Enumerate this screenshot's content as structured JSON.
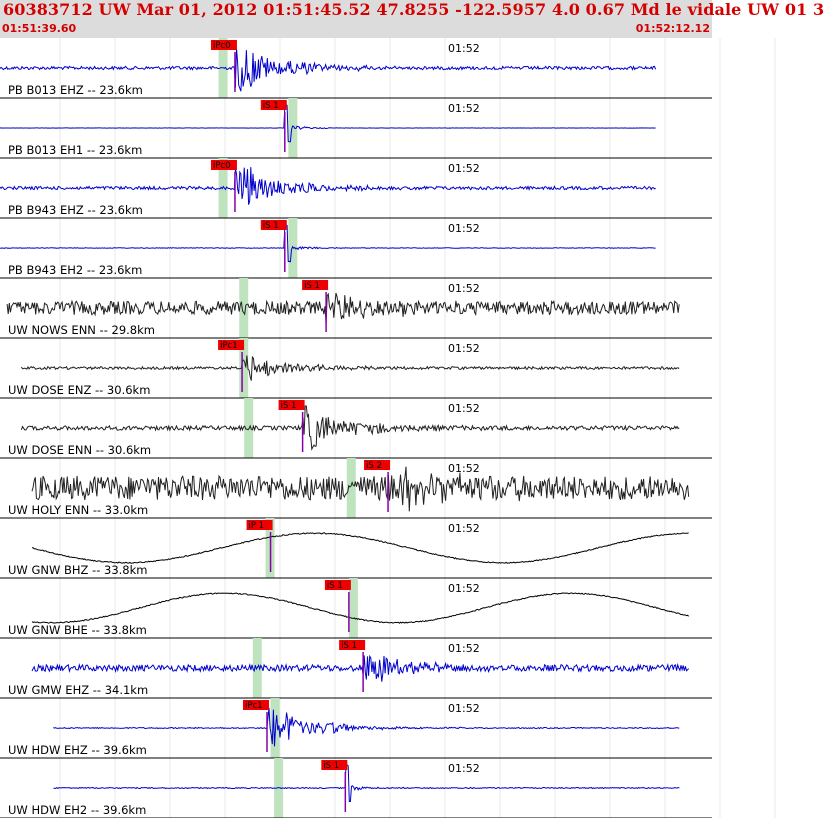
{
  "header": {
    "title": "60383712 UW Mar 01, 2012 01:51:45.52   47.8255 -122.5957  4.0 0.67 Md le vidale UW 01   3",
    "time_start": "01:51:39.60",
    "time_end": "01:52:12.12"
  },
  "colors": {
    "header_bg": "#dcdcdc",
    "header_text": "#d40000",
    "blue_trace": "#0000cc",
    "dark_trace": "#202020",
    "black_trace": "#000000",
    "pick_bg": "#ee0000",
    "green_band": "#bfe3bf"
  },
  "channels": [
    {
      "label": "PB B013 EHZ -- 23.6km",
      "time_label": "01:52",
      "pick": "iPc0",
      "color": "blue",
      "trace_start": 0.0,
      "trace_end": 0.922,
      "pick_x": 0.33,
      "amp": 0.9,
      "noise": 0.06,
      "style": "quake",
      "band": 0.307
    },
    {
      "label": "PB B013 EH1 -- 23.6km",
      "time_label": "01:52",
      "pick": "iS 1",
      "color": "blue",
      "trace_start": 0.0,
      "trace_end": 0.922,
      "pick_x": 0.4,
      "amp": 0.9,
      "noise": 0.005,
      "style": "spike",
      "band": 0.405
    },
    {
      "label": "PB B943 EHZ -- 23.6km",
      "time_label": "01:52",
      "pick": "iPc0",
      "color": "blue",
      "trace_start": 0.0,
      "trace_end": 0.922,
      "pick_x": 0.33,
      "amp": 0.9,
      "noise": 0.06,
      "style": "quake",
      "band": 0.307
    },
    {
      "label": "PB B943 EH2 -- 23.6km",
      "time_label": "01:52",
      "pick": "iS 1",
      "color": "blue",
      "trace_start": 0.0,
      "trace_end": 0.922,
      "pick_x": 0.4,
      "amp": 0.9,
      "noise": 0.01,
      "style": "spike",
      "band": 0.405
    },
    {
      "label": "UW NOWS ENN -- 29.8km",
      "time_label": "01:52",
      "pick": "iS 1",
      "color": "dark",
      "trace_start": 0.01,
      "trace_end": 0.955,
      "pick_x": 0.458,
      "amp": 0.5,
      "noise": 0.25,
      "style": "noisy",
      "band": 0.336
    },
    {
      "label": "UW DOSE ENZ -- 30.6km",
      "time_label": "01:52",
      "pick": "iPc1",
      "color": "dark",
      "trace_start": 0.03,
      "trace_end": 0.955,
      "pick_x": 0.34,
      "amp": 0.55,
      "noise": 0.05,
      "style": "quake",
      "band": 0.336
    },
    {
      "label": "UW DOSE ENN -- 30.6km",
      "time_label": "01:52",
      "pick": "iS 1",
      "color": "dark",
      "trace_start": 0.03,
      "trace_end": 0.955,
      "pick_x": 0.425,
      "amp": 0.85,
      "noise": 0.08,
      "style": "quake",
      "band": 0.343
    },
    {
      "label": "UW HOLY ENN -- 33.0km",
      "time_label": "01:52",
      "pick": "iS 2",
      "color": "dark",
      "trace_start": 0.045,
      "trace_end": 0.968,
      "pick_x": 0.545,
      "amp": 0.7,
      "noise": 0.45,
      "style": "noisy",
      "band": 0.487
    },
    {
      "label": "UW GNW BHZ -- 33.8km",
      "time_label": "01:52",
      "pick": "iP 1",
      "color": "black",
      "trace_start": 0.045,
      "trace_end": 0.968,
      "pick_x": 0.38,
      "amp": 0.65,
      "noise": 0.02,
      "style": "swell",
      "band": 0.373
    },
    {
      "label": "UW GNW BHE -- 33.8km",
      "time_label": "01:52",
      "pick": "iS 1",
      "color": "black",
      "trace_start": 0.045,
      "trace_end": 0.968,
      "pick_x": 0.49,
      "amp": 0.65,
      "noise": 0.02,
      "style": "swell2",
      "band": 0.49
    },
    {
      "label": "UW GMW EHZ -- 34.1km",
      "time_label": "01:52",
      "pick": "iS 1",
      "color": "blue",
      "trace_start": 0.045,
      "trace_end": 0.968,
      "pick_x": 0.51,
      "amp": 0.6,
      "noise": 0.12,
      "style": "quake",
      "band": 0.355
    },
    {
      "label": "UW HDW EHZ -- 39.6km",
      "time_label": "01:52",
      "pick": "iPc1",
      "color": "blue",
      "trace_start": 0.075,
      "trace_end": 0.955,
      "pick_x": 0.375,
      "amp": 0.8,
      "noise": 0.02,
      "style": "quake",
      "band": 0.38
    },
    {
      "label": "UW HDW EH2 -- 39.6km",
      "time_label": "01:52",
      "pick": "iS 1",
      "color": "blue",
      "trace_start": 0.075,
      "trace_end": 0.955,
      "pick_x": 0.485,
      "amp": 0.9,
      "noise": 0.02,
      "style": "spike",
      "band": 0.385
    }
  ]
}
